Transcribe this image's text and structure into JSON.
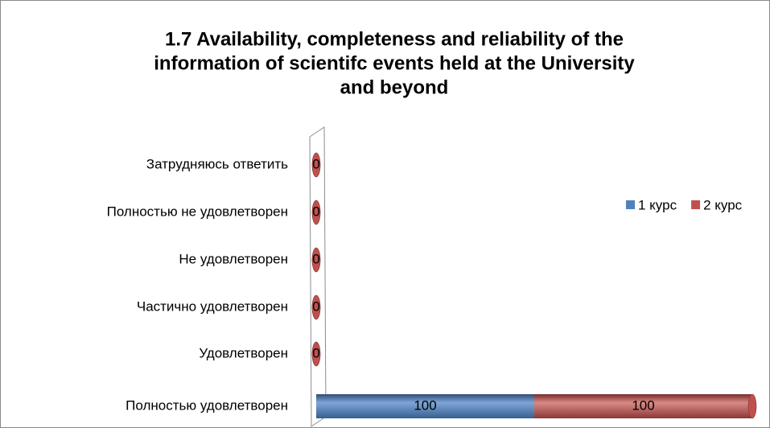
{
  "chart_data": {
    "type": "stacked-bar-horizontal",
    "title": [
      "1.7 Availability, completeness and reliability of the",
      "information of scientifc events held at the University",
      "and beyond"
    ],
    "categories": [
      "Полностью удовлетворен",
      "Удовлетворен",
      "Частично удовлетворен",
      "Не удовлетворен",
      "Полностью не удовлетворен",
      "Затрудняюсь ответить"
    ],
    "series": [
      {
        "name": "1 курс",
        "color": "#4f81bd",
        "values": [
          100,
          0,
          0,
          0,
          0,
          0
        ]
      },
      {
        "name": "2 курс",
        "color": "#c0504d",
        "values": [
          100,
          0,
          0,
          0,
          0,
          0
        ]
      }
    ],
    "xlim": [
      0,
      200
    ],
    "legend": "right"
  }
}
